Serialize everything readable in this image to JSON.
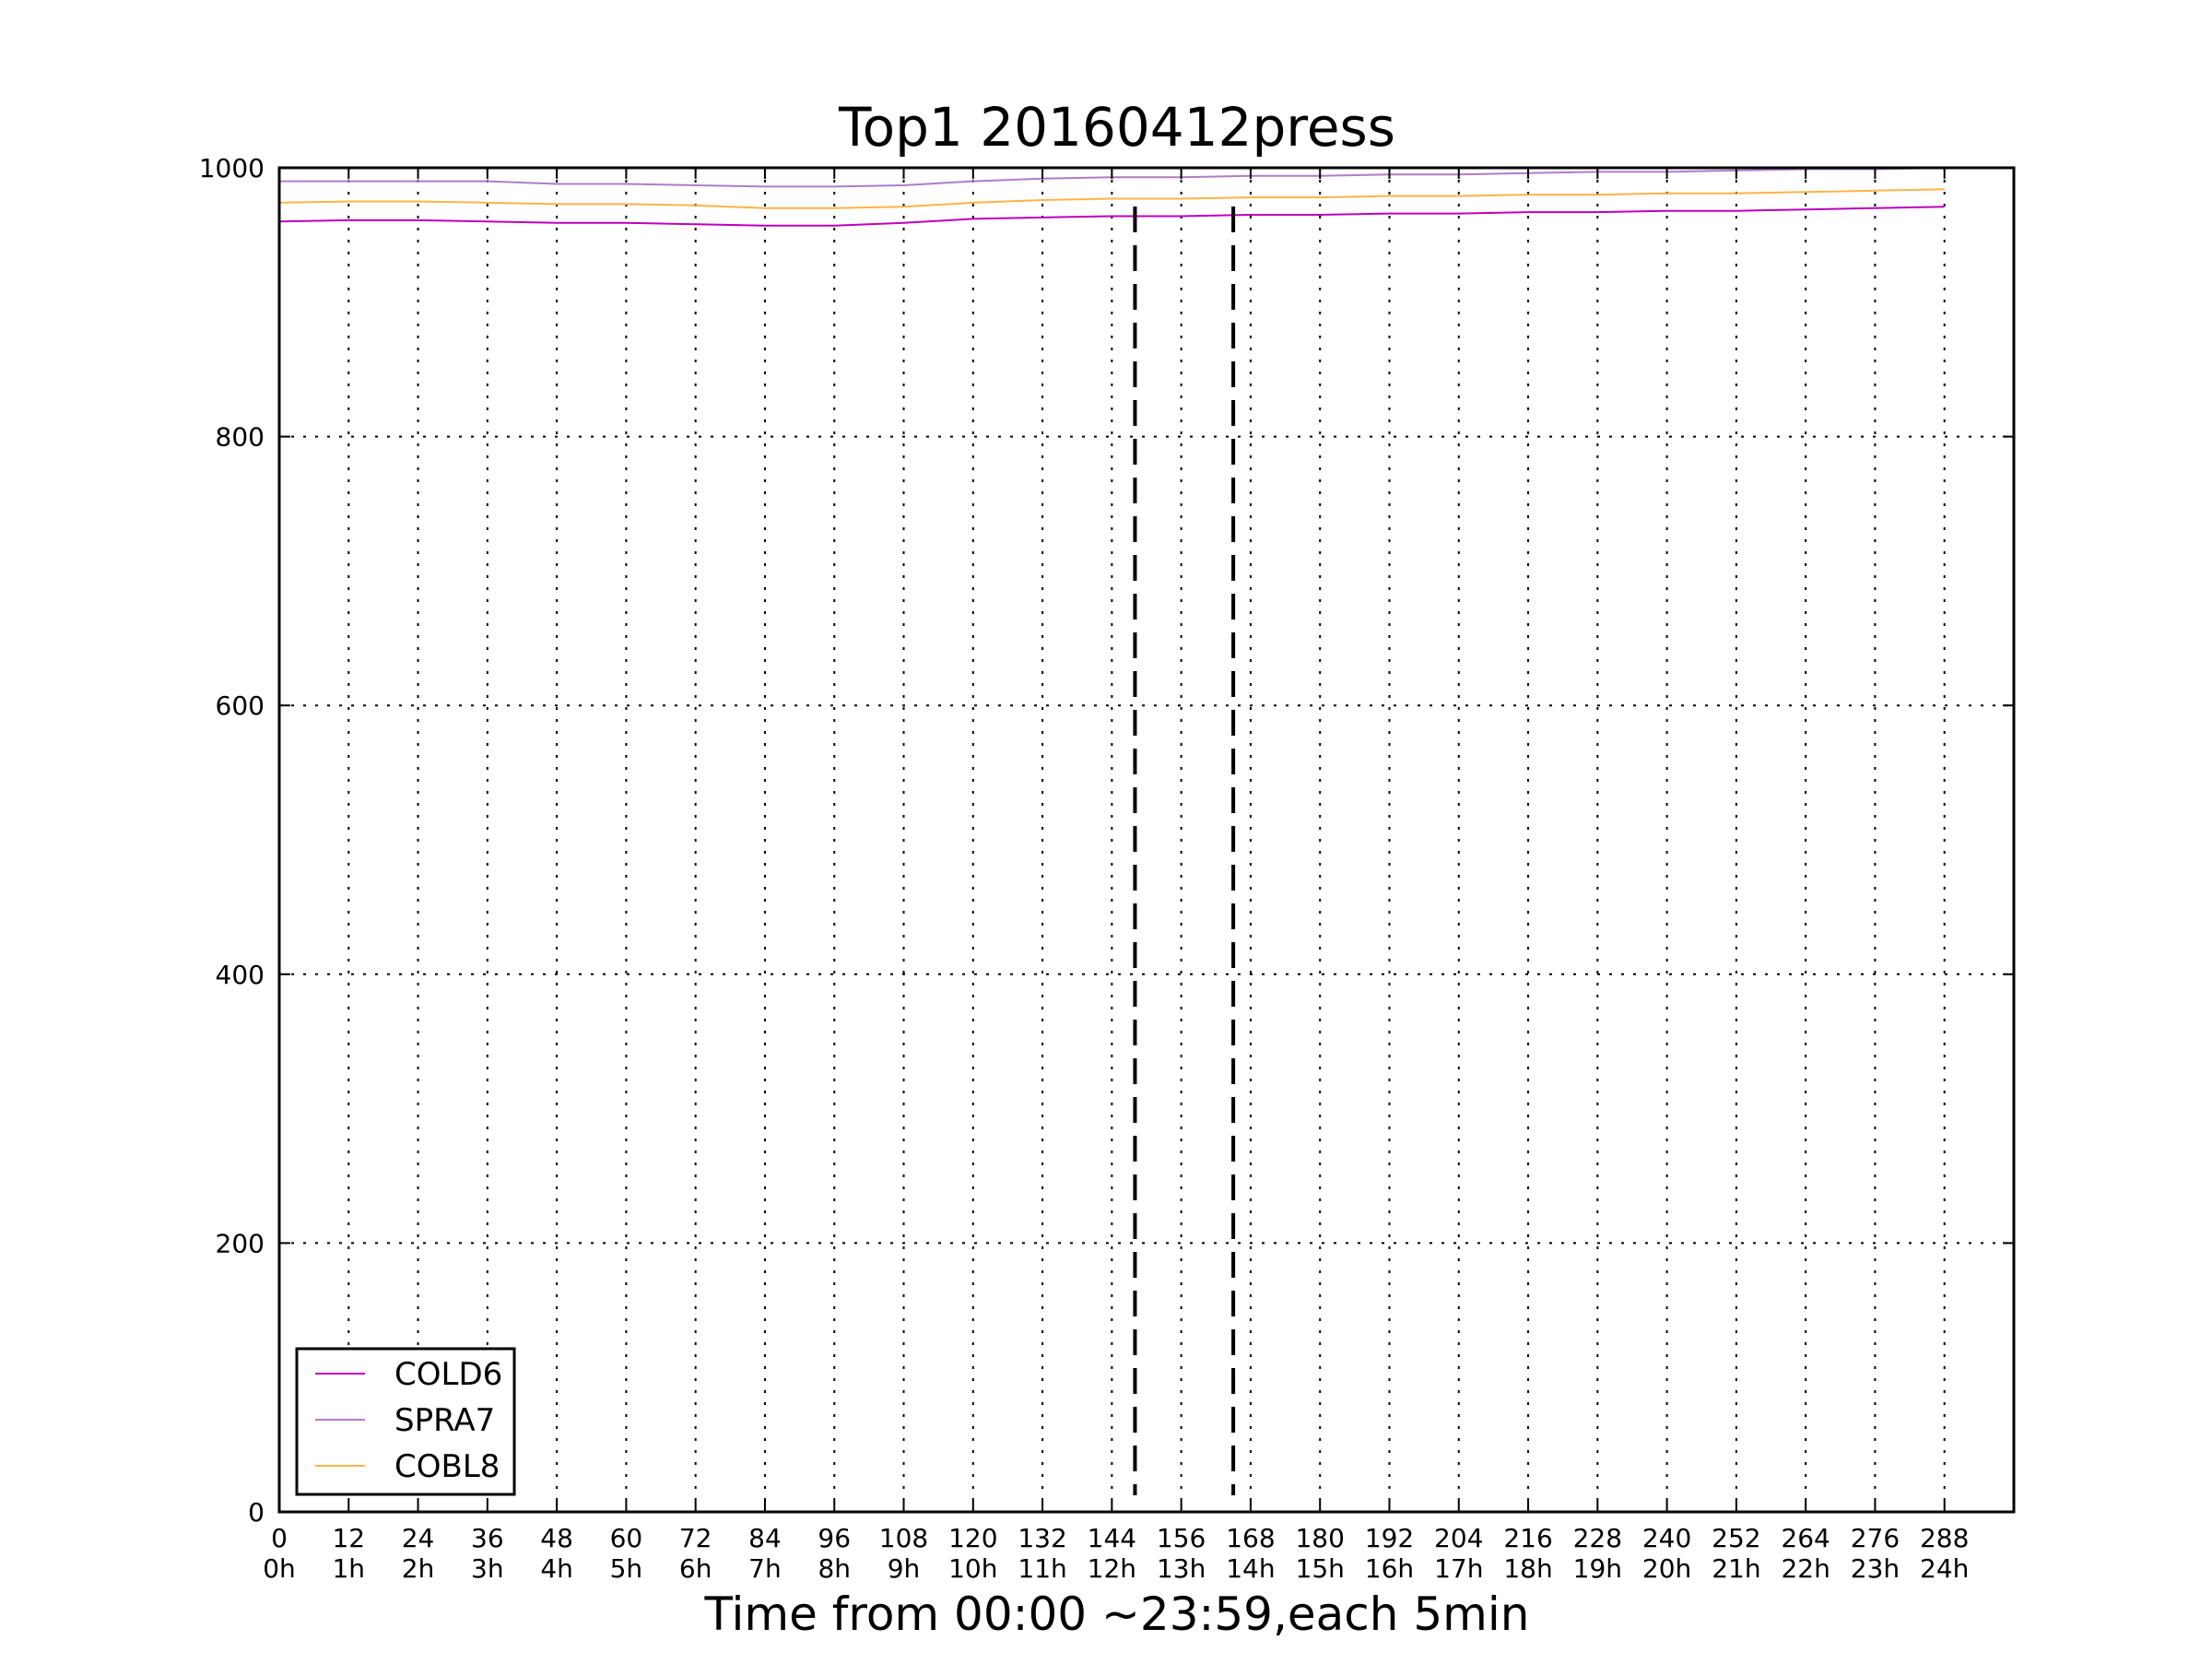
{
  "chart_data": {
    "type": "line",
    "title": "Top1 20160412press",
    "xlabel": "Time from 00:00 ~23:59,each 5min",
    "ylabel": "",
    "xlim": [
      0,
      300
    ],
    "ylim": [
      0,
      1000
    ],
    "grid": true,
    "legend_position": "lower-left",
    "x_ticks": [
      0,
      12,
      24,
      36,
      48,
      60,
      72,
      84,
      96,
      108,
      120,
      132,
      144,
      156,
      168,
      180,
      192,
      204,
      216,
      228,
      240,
      252,
      264,
      276,
      288
    ],
    "x_tick_labels_top": [
      "0",
      "12",
      "24",
      "36",
      "48",
      "60",
      "72",
      "84",
      "96",
      "108",
      "120",
      "132",
      "144",
      "156",
      "168",
      "180",
      "192",
      "204",
      "216",
      "228",
      "240",
      "252",
      "264",
      "276",
      "288"
    ],
    "x_tick_labels_bottom": [
      "0h",
      "1h",
      "2h",
      "3h",
      "4h",
      "5h",
      "6h",
      "7h",
      "8h",
      "9h",
      "10h",
      "11h",
      "12h",
      "13h",
      "14h",
      "15h",
      "16h",
      "17h",
      "18h",
      "19h",
      "20h",
      "21h",
      "22h",
      "23h",
      "24h"
    ],
    "y_ticks": [
      0,
      200,
      400,
      600,
      800,
      1000
    ],
    "y_tick_labels": [
      "0",
      "200",
      "400",
      "600",
      "800",
      "1000"
    ],
    "vertical_markers": [
      148,
      165
    ],
    "x": [
      0,
      12,
      24,
      36,
      48,
      60,
      72,
      84,
      96,
      108,
      120,
      132,
      144,
      156,
      168,
      180,
      192,
      204,
      216,
      228,
      240,
      252,
      264,
      276,
      288
    ],
    "series": [
      {
        "name": "COLD6",
        "color": "#bf00bf",
        "values": [
          960,
          961,
          961,
          960,
          959,
          959,
          958,
          957,
          957,
          959,
          962,
          963,
          964,
          964,
          965,
          965,
          966,
          966,
          967,
          967,
          968,
          968,
          969,
          970,
          971
        ]
      },
      {
        "name": "SPRA7",
        "color": "#b07cc6",
        "values": [
          990,
          990,
          990,
          990,
          988,
          988,
          987,
          986,
          986,
          987,
          990,
          992,
          993,
          993,
          994,
          994,
          995,
          995,
          996,
          997,
          997,
          998,
          999,
          999,
          1000
        ]
      },
      {
        "name": "COBL8",
        "color": "#ffb347",
        "values": [
          974,
          975,
          975,
          974,
          973,
          973,
          972,
          970,
          970,
          971,
          974,
          976,
          977,
          977,
          978,
          978,
          979,
          979,
          980,
          980,
          981,
          981,
          982,
          983,
          984
        ]
      }
    ]
  }
}
